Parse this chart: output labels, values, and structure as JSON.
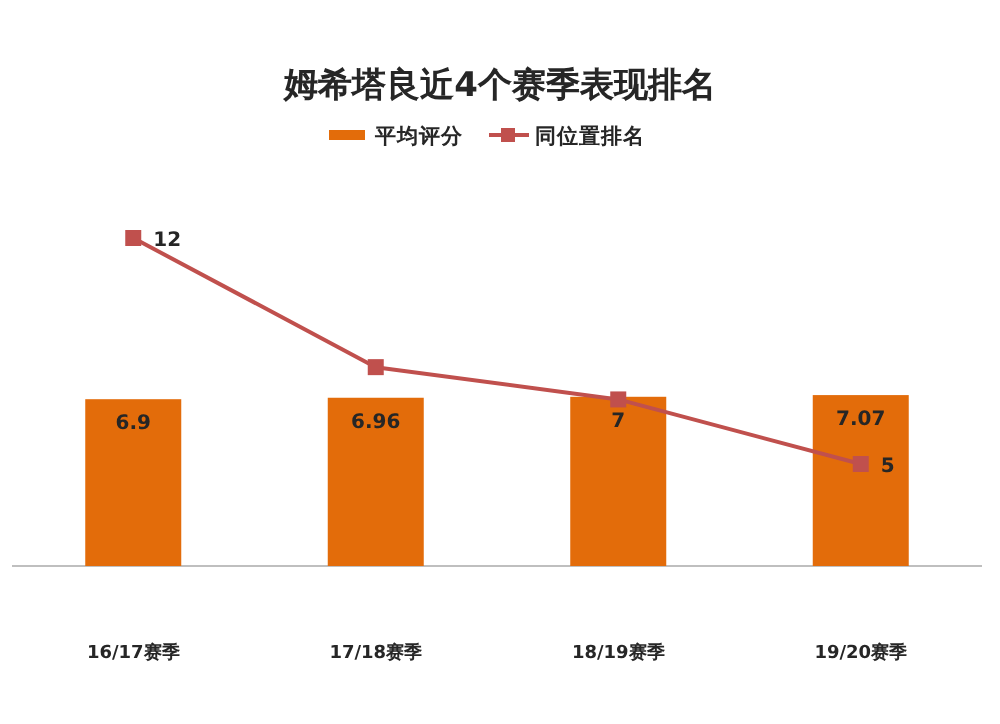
{
  "chart_data": {
    "type": "bar",
    "title": "姆希塔良近4个赛季表现排名",
    "categories": [
      "16/17赛季",
      "17/18赛季",
      "18/19赛季",
      "19/20赛季"
    ],
    "legend": "top",
    "series": [
      {
        "name": "平均评分",
        "color": "#e36c0a",
        "values": [
          6.9,
          6.96,
          7,
          7.07
        ],
        "value_labels": [
          "6.9",
          "6.96",
          "7",
          "7.07"
        ]
      },
      {
        "name": "同位置排名",
        "type": "line",
        "axis": "y2",
        "color": "#c0504d",
        "marker": "square",
        "line_style": "solid",
        "values": [
          12,
          8,
          7,
          5
        ],
        "value_labels": [
          "12",
          null,
          null,
          "5"
        ]
      }
    ]
  }
}
